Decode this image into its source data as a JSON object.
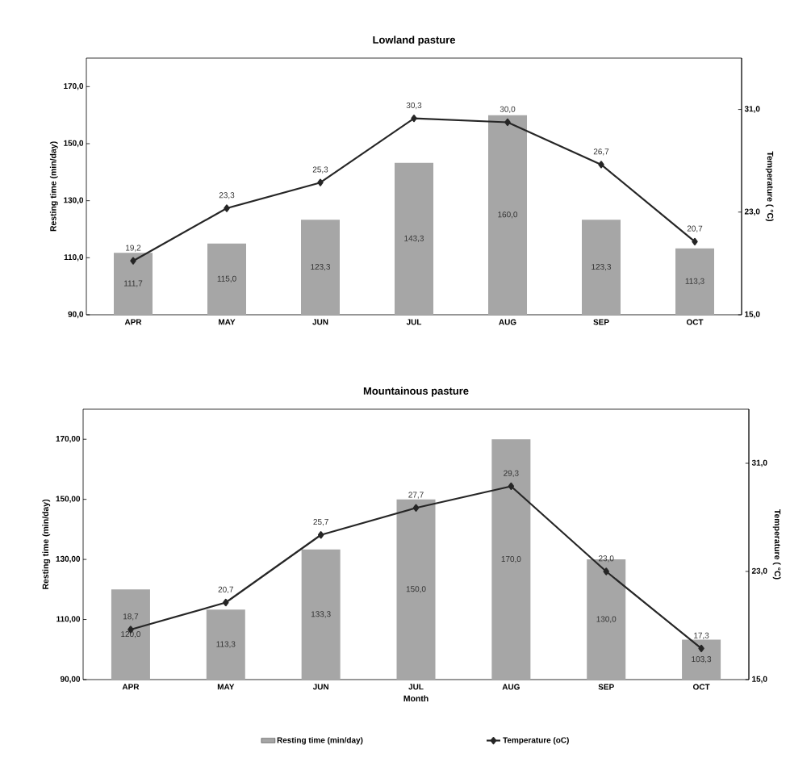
{
  "chart_data": [
    {
      "type": "bar",
      "title": "Lowland pasture",
      "ylabel": "Resting time (min/day)",
      "y2label": "Temperature ( °C)",
      "categories": [
        "APR",
        "MAY",
        "JUN",
        "JUL",
        "AUG",
        "SEP",
        "OCT"
      ],
      "series": [
        {
          "type": "bar",
          "color": "#a6a6a6",
          "values": [
            111.7,
            115.0,
            123.3,
            143.3,
            160.0,
            123.3,
            113.3
          ],
          "value_labels": [
            "111,7",
            "115,0",
            "123,3",
            "143,3",
            "160,0",
            "123,3",
            "113,3"
          ]
        },
        {
          "type": "line",
          "axis": "y2",
          "color": "#262626",
          "marker": "diamond",
          "values": [
            19.2,
            23.3,
            25.3,
            30.3,
            30.0,
            26.7,
            20.7
          ],
          "value_labels": [
            "19,2",
            "23,3",
            "25,3",
            "30,3",
            "30,0",
            "26,7",
            "20,7"
          ]
        }
      ],
      "ylim": [
        90,
        180
      ],
      "yticks": [
        {
          "value": 90,
          "label": "90,0"
        },
        {
          "value": 110,
          "label": "110,0"
        },
        {
          "value": 130,
          "label": "130,0"
        },
        {
          "value": 150,
          "label": "150,0"
        },
        {
          "value": 170,
          "label": "170,0"
        }
      ],
      "y2lim": [
        15,
        35
      ],
      "y2ticks": [
        {
          "value": 15,
          "label": "15,0"
        },
        {
          "value": 23,
          "label": "23,0"
        },
        {
          "value": 31,
          "label": "31,0"
        }
      ],
      "legend": false
    },
    {
      "type": "bar",
      "title": "Mountainous pasture",
      "xlabel": "Month",
      "ylabel": "Resting time (min/day)",
      "y2label": "Temperature ( °C)",
      "categories": [
        "APR",
        "MAY",
        "JUN",
        "JUL",
        "AUG",
        "SEP",
        "OCT"
      ],
      "series": [
        {
          "type": "bar",
          "name": "Resting time (min/day)",
          "color": "#a6a6a6",
          "values": [
            120.0,
            113.3,
            133.3,
            150.0,
            170.0,
            130.0,
            103.3
          ],
          "value_labels": [
            "120,0",
            "113,3",
            "133,3",
            "150,0",
            "170,0",
            "130,0",
            "103,3"
          ]
        },
        {
          "type": "line",
          "name": "Temperature (oC)",
          "axis": "y2",
          "color": "#262626",
          "marker": "diamond",
          "values": [
            18.7,
            20.7,
            25.7,
            27.7,
            29.3,
            23.0,
            17.3
          ],
          "value_labels": [
            "18,7",
            "20,7",
            "25,7",
            "27,7",
            "29,3",
            "23,0",
            "17,3"
          ]
        }
      ],
      "ylim": [
        90,
        180
      ],
      "yticks": [
        {
          "value": 90,
          "label": "90,00"
        },
        {
          "value": 110,
          "label": "110,00"
        },
        {
          "value": 130,
          "label": "130,00"
        },
        {
          "value": 150,
          "label": "150,00"
        },
        {
          "value": 170,
          "label": "170,00"
        }
      ],
      "y2lim": [
        15,
        35
      ],
      "y2ticks": [
        {
          "value": 15,
          "label": "15,0"
        },
        {
          "value": 23,
          "label": "23,0"
        },
        {
          "value": 31,
          "label": "31,0"
        }
      ],
      "legend": "bottom"
    }
  ]
}
